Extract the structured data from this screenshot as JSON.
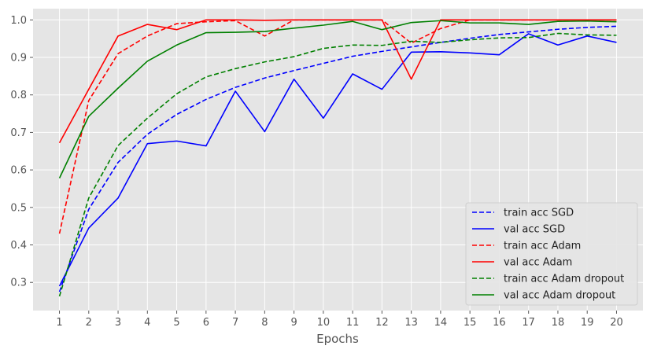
{
  "chart_data": {
    "type": "line",
    "title": "",
    "xlabel": "Epochs",
    "ylabel": "",
    "x": [
      1,
      2,
      3,
      4,
      5,
      6,
      7,
      8,
      9,
      10,
      11,
      12,
      13,
      14,
      15,
      16,
      17,
      18,
      19,
      20
    ],
    "xlim": [
      0.1,
      20.9
    ],
    "ylim": [
      0.225,
      1.03
    ],
    "yticks": [
      0.3,
      0.4,
      0.5,
      0.6,
      0.7,
      0.8,
      0.9,
      1.0
    ],
    "grid": true,
    "legend_position": "lower-right",
    "series": [
      {
        "name": "train acc SGD",
        "color": "#0000ff",
        "dash": true,
        "values": [
          0.275,
          0.495,
          0.62,
          0.695,
          0.748,
          0.788,
          0.82,
          0.845,
          0.865,
          0.884,
          0.903,
          0.916,
          0.928,
          0.94,
          0.951,
          0.961,
          0.968,
          0.975,
          0.98,
          0.983
        ]
      },
      {
        "name": "val acc SGD",
        "color": "#0000ff",
        "dash": false,
        "values": [
          0.29,
          0.445,
          0.525,
          0.67,
          0.677,
          0.664,
          0.81,
          0.702,
          0.842,
          0.738,
          0.856,
          0.815,
          0.914,
          0.915,
          0.912,
          0.907,
          0.963,
          0.933,
          0.957,
          0.94
        ]
      },
      {
        "name": "train acc Adam",
        "color": "#ff0000",
        "dash": true,
        "values": [
          0.43,
          0.785,
          0.91,
          0.957,
          0.99,
          0.995,
          0.998,
          0.957,
          1.0,
          1.0,
          1.0,
          1.0,
          0.938,
          0.977,
          1.0,
          1.0,
          1.0,
          1.0,
          1.0,
          1.0
        ]
      },
      {
        "name": "val acc Adam",
        "color": "#ff0000",
        "dash": false,
        "values": [
          0.672,
          0.815,
          0.957,
          0.988,
          0.974,
          1.0,
          1.0,
          0.999,
          1.0,
          1.0,
          1.0,
          1.0,
          0.842,
          1.0,
          1.0,
          1.0,
          1.0,
          1.0,
          1.0,
          1.0
        ]
      },
      {
        "name": "train acc Adam dropout",
        "color": "#008000",
        "dash": true,
        "values": [
          0.263,
          0.525,
          0.665,
          0.738,
          0.803,
          0.848,
          0.87,
          0.888,
          0.902,
          0.924,
          0.933,
          0.932,
          0.943,
          0.94,
          0.947,
          0.952,
          0.953,
          0.964,
          0.96,
          0.959
        ]
      },
      {
        "name": "val acc Adam dropout",
        "color": "#008000",
        "dash": false,
        "values": [
          0.578,
          0.743,
          0.818,
          0.89,
          0.933,
          0.966,
          0.967,
          0.969,
          0.978,
          0.986,
          0.996,
          0.974,
          0.993,
          0.998,
          0.992,
          0.992,
          0.988,
          0.996,
          0.997,
          0.995
        ]
      }
    ]
  }
}
